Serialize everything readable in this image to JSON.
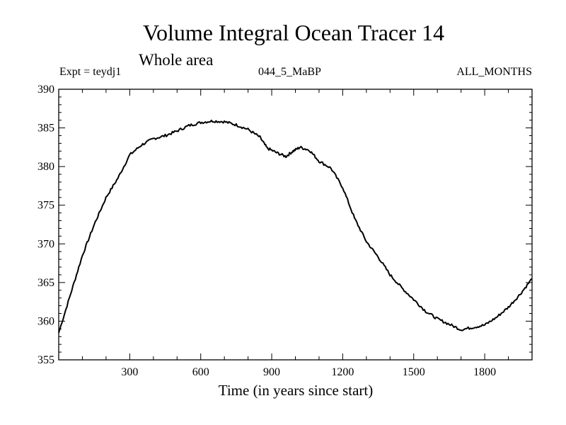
{
  "header": {
    "title": "Volume Integral Ocean Tracer 14",
    "subtitle": "Whole area",
    "expt": "Expt = teydj1",
    "run": "044_5_MaBP",
    "months": "ALL_MONTHS"
  },
  "chart_data": {
    "type": "line",
    "title": "Volume Integral Ocean Tracer 14",
    "xlabel": "Time (in years since start)",
    "ylabel": "",
    "xlim": [
      0,
      2000
    ],
    "ylim": [
      355,
      390
    ],
    "xticks": [
      300,
      600,
      900,
      1200,
      1500,
      1800
    ],
    "yticks": [
      355,
      360,
      365,
      370,
      375,
      380,
      385,
      390
    ],
    "grid": false,
    "series": [
      {
        "color": "#000000",
        "points": [
          [
            0,
            358.5
          ],
          [
            50,
            363.5
          ],
          [
            100,
            368.5
          ],
          [
            150,
            372.5
          ],
          [
            200,
            376.0
          ],
          [
            250,
            378.5
          ],
          [
            300,
            381.5
          ],
          [
            350,
            382.8
          ],
          [
            400,
            383.6
          ],
          [
            450,
            384.0
          ],
          [
            500,
            384.6
          ],
          [
            550,
            385.3
          ],
          [
            600,
            385.7
          ],
          [
            650,
            385.9
          ],
          [
            700,
            385.8
          ],
          [
            750,
            385.4
          ],
          [
            800,
            384.8
          ],
          [
            850,
            383.8
          ],
          [
            880,
            382.4
          ],
          [
            920,
            381.8
          ],
          [
            960,
            381.3
          ],
          [
            990,
            382.0
          ],
          [
            1020,
            382.5
          ],
          [
            1060,
            382.1
          ],
          [
            1100,
            380.7
          ],
          [
            1150,
            379.8
          ],
          [
            1200,
            377.3
          ],
          [
            1250,
            373.3
          ],
          [
            1300,
            370.3
          ],
          [
            1350,
            368.3
          ],
          [
            1400,
            366.0
          ],
          [
            1450,
            364.3
          ],
          [
            1500,
            362.8
          ],
          [
            1550,
            361.3
          ],
          [
            1600,
            360.3
          ],
          [
            1650,
            359.6
          ],
          [
            1700,
            358.9
          ],
          [
            1750,
            359.2
          ],
          [
            1800,
            359.5
          ],
          [
            1850,
            360.5
          ],
          [
            1900,
            361.8
          ],
          [
            1950,
            363.5
          ],
          [
            2000,
            365.5
          ]
        ]
      }
    ]
  }
}
